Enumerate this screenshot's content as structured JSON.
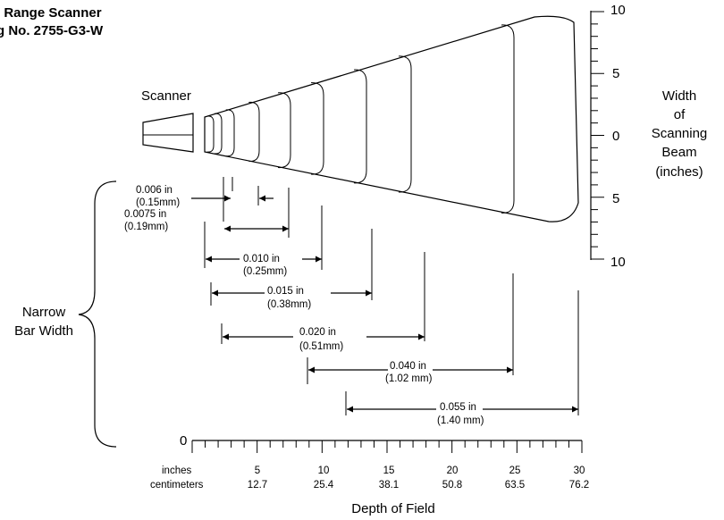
{
  "title": {
    "line1": "l Range Scanner",
    "line2": "g No. 2755-G3-W"
  },
  "scanner_label": "Scanner",
  "beam_axis": {
    "label_lines": [
      "Width",
      "of",
      "Scanning",
      "Beam",
      "(inches)"
    ],
    "ticks": [
      "10",
      "5",
      "0",
      "5",
      "10"
    ]
  },
  "narrow_bar_width": {
    "label_lines": [
      "Narrow",
      "Bar Width"
    ]
  },
  "ranges": [
    {
      "label": "0.006 in",
      "metric": "(0.15mm)"
    },
    {
      "label": "0.0075 in",
      "metric": "(0.19mm)"
    },
    {
      "label": "0.010 in",
      "metric": "(0.25mm)"
    },
    {
      "label": "0.015 in",
      "metric": "(0.38mm)"
    },
    {
      "label": "0.020 in",
      "metric": "(0.51mm)"
    },
    {
      "label": "0.040 in",
      "metric": "(1.02 mm)"
    },
    {
      "label": "0.055 in",
      "metric": "(1.40 mm)"
    }
  ],
  "depth_axis": {
    "zero": "0",
    "unit_inches": "inches",
    "unit_cm": "centimeters",
    "inch_ticks": [
      "5",
      "10",
      "15",
      "20",
      "25",
      "30"
    ],
    "cm_ticks": [
      "12.7",
      "25.4",
      "38.1",
      "50.8",
      "63.5",
      "76.2"
    ],
    "title": "Depth of Field"
  }
}
